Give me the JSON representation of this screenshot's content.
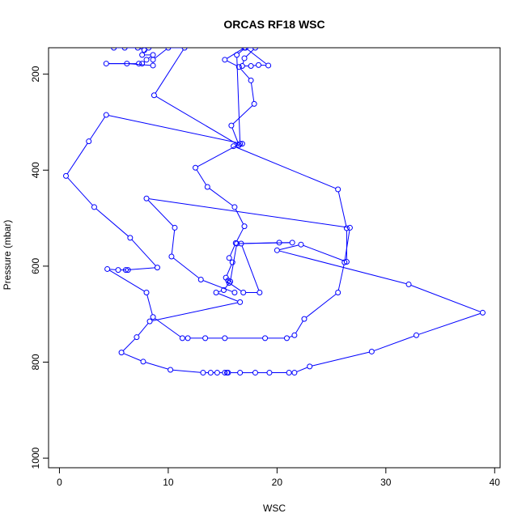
{
  "chart_data": {
    "type": "line",
    "title": "ORCAS RF18 WSC",
    "xlabel": "WSC",
    "ylabel": "Pressure (mbar)",
    "xlim": [
      -1,
      40.5
    ],
    "ylim": [
      1020,
      145
    ],
    "y_reversed": true,
    "x_ticks": [
      0,
      10,
      20,
      30,
      40
    ],
    "y_ticks": [
      200,
      400,
      600,
      800,
      1000
    ],
    "x_tick_labels": [
      "0",
      "10",
      "20",
      "30",
      "40"
    ],
    "y_tick_labels": [
      "200",
      "400",
      "600",
      "800",
      "1000"
    ],
    "grid": false,
    "legend": "none",
    "colors": {
      "series": "#0000ff",
      "axis": "#000000",
      "background": "#ffffff"
    },
    "series": [
      {
        "points": [
          [
            5.0,
            145
          ],
          [
            6.0,
            145
          ],
          [
            7.2,
            145
          ],
          [
            7.8,
            150
          ],
          [
            8.2,
            145
          ],
          [
            7.6,
            160
          ],
          [
            8.6,
            160
          ],
          [
            8.0,
            170
          ],
          [
            7.6,
            178
          ],
          [
            7.3,
            178
          ],
          [
            4.3,
            178
          ],
          [
            6.2,
            178
          ],
          [
            8.6,
            182
          ],
          [
            8.6,
            170
          ],
          [
            10.0,
            145
          ],
          [
            11.5,
            145
          ],
          [
            8.7,
            244
          ],
          [
            16.5,
            348
          ],
          [
            15.8,
            307
          ],
          [
            17.9,
            262
          ],
          [
            17.6,
            213
          ],
          [
            16.5,
            185
          ],
          [
            15.2,
            170
          ],
          [
            17.0,
            145
          ],
          [
            18.0,
            145
          ],
          [
            17.0,
            167
          ],
          [
            16.8,
            183
          ],
          [
            17.6,
            183
          ],
          [
            18.3,
            181
          ],
          [
            19.2,
            182
          ],
          [
            17.1,
            145
          ],
          [
            16.3,
            160
          ],
          [
            16.6,
            345
          ],
          [
            12.5,
            395
          ],
          [
            13.6,
            435
          ],
          [
            16.1,
            477
          ],
          [
            17.0,
            517
          ],
          [
            16.2,
            552
          ],
          [
            15.6,
            583
          ],
          [
            15.9,
            592
          ],
          [
            15.3,
            624
          ],
          [
            15.5,
            630
          ],
          [
            15.6,
            635
          ],
          [
            16.9,
            655
          ],
          [
            18.4,
            655
          ],
          [
            16.7,
            553
          ],
          [
            20.2,
            551
          ],
          [
            21.4,
            551
          ],
          [
            16.3,
            553
          ],
          [
            15.7,
            632
          ],
          [
            15.1,
            650
          ],
          [
            14.4,
            655
          ],
          [
            16.6,
            675
          ],
          [
            8.3,
            715
          ],
          [
            7.1,
            748
          ],
          [
            5.7,
            780
          ],
          [
            7.7,
            799
          ],
          [
            10.2,
            816
          ],
          [
            13.2,
            822
          ],
          [
            13.9,
            822
          ],
          [
            14.5,
            822
          ],
          [
            15.2,
            822
          ],
          [
            15.4,
            822
          ],
          [
            15.5,
            822
          ],
          [
            16.6,
            822
          ],
          [
            18.0,
            822
          ],
          [
            19.3,
            822
          ],
          [
            21.1,
            822
          ],
          [
            21.6,
            822
          ],
          [
            23.0,
            809
          ],
          [
            28.7,
            778
          ],
          [
            32.8,
            744
          ],
          [
            38.9,
            697
          ],
          [
            32.1,
            638
          ],
          [
            20.0,
            567
          ],
          [
            22.2,
            555
          ],
          [
            26.4,
            591
          ],
          [
            26.4,
            521
          ],
          [
            25.6,
            440
          ],
          [
            16.0,
            350
          ],
          [
            16.8,
            345
          ],
          [
            4.3,
            285
          ],
          [
            2.7,
            340
          ],
          [
            0.6,
            412
          ],
          [
            3.2,
            477
          ],
          [
            6.5,
            541
          ],
          [
            9.0,
            603
          ],
          [
            6.1,
            608
          ],
          [
            6.3,
            608
          ],
          [
            5.4,
            608
          ],
          [
            4.4,
            606
          ],
          [
            8.0,
            655
          ],
          [
            8.6,
            706
          ],
          [
            11.3,
            750
          ],
          [
            11.8,
            750
          ],
          [
            13.4,
            750
          ],
          [
            15.2,
            750
          ],
          [
            18.9,
            750
          ],
          [
            20.9,
            750
          ],
          [
            21.6,
            744
          ],
          [
            22.5,
            710
          ],
          [
            25.6,
            655
          ],
          [
            26.2,
            592
          ],
          [
            26.7,
            520
          ],
          [
            8.0,
            459
          ],
          [
            10.6,
            520
          ],
          [
            10.3,
            580
          ],
          [
            13.0,
            628
          ],
          [
            16.1,
            655
          ]
        ]
      }
    ]
  }
}
